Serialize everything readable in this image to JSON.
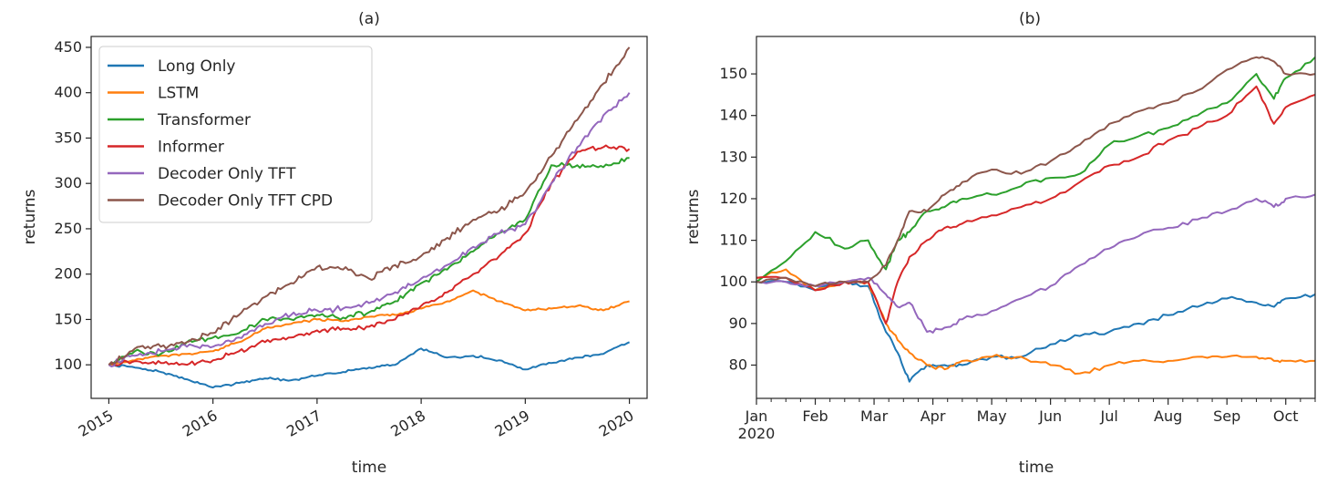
{
  "chart_data": [
    {
      "type": "line",
      "title": "(a)",
      "xlabel": "time",
      "ylabel": "returns",
      "xlim": [
        2014.83,
        2020.17
      ],
      "ylim": [
        63,
        462
      ],
      "x_ticks": [
        2015,
        2016,
        2017,
        2018,
        2019,
        2020
      ],
      "x_tick_labels": [
        "2015",
        "2016",
        "2017",
        "2018",
        "2019",
        "2020"
      ],
      "y_ticks": [
        100,
        150,
        200,
        250,
        300,
        350,
        400,
        450
      ],
      "y_tick_labels": [
        "100",
        "150",
        "200",
        "250",
        "300",
        "350",
        "400",
        "450"
      ],
      "legend_position": "top-left",
      "grid": false,
      "series": [
        {
          "name": "Long Only",
          "color": "#1f77b4",
          "x": [
            2015,
            2015.25,
            2015.5,
            2015.75,
            2016,
            2016.25,
            2016.5,
            2016.75,
            2017,
            2017.25,
            2017.5,
            2017.75,
            2018,
            2018.25,
            2018.5,
            2018.75,
            2019,
            2019.25,
            2019.5,
            2019.75,
            2020
          ],
          "y": [
            100,
            97,
            92,
            84,
            75,
            80,
            85,
            83,
            88,
            92,
            97,
            100,
            118,
            108,
            110,
            105,
            95,
            102,
            108,
            112,
            125
          ]
        },
        {
          "name": "LSTM",
          "color": "#ff7f0e",
          "x": [
            2015,
            2015.25,
            2015.5,
            2015.75,
            2016,
            2016.25,
            2016.5,
            2016.75,
            2017,
            2017.25,
            2017.5,
            2017.75,
            2018,
            2018.25,
            2018.5,
            2018.75,
            2019,
            2019.25,
            2019.5,
            2019.75,
            2020
          ],
          "y": [
            100,
            105,
            110,
            112,
            115,
            125,
            140,
            145,
            150,
            148,
            153,
            155,
            162,
            170,
            182,
            170,
            160,
            162,
            165,
            160,
            170
          ]
        },
        {
          "name": "Transformer",
          "color": "#2ca02c",
          "x": [
            2015,
            2015.25,
            2015.5,
            2015.75,
            2016,
            2016.25,
            2016.5,
            2016.75,
            2017,
            2017.25,
            2017.5,
            2017.75,
            2018,
            2018.25,
            2018.5,
            2018.75,
            2019,
            2019.25,
            2019.5,
            2019.75,
            2020
          ],
          "y": [
            100,
            115,
            112,
            125,
            130,
            135,
            150,
            150,
            155,
            152,
            158,
            170,
            190,
            205,
            225,
            245,
            260,
            320,
            320,
            318,
            328
          ]
        },
        {
          "name": "Informer",
          "color": "#d62728",
          "x": [
            2015,
            2015.25,
            2015.5,
            2015.75,
            2016,
            2016.25,
            2016.5,
            2016.75,
            2017,
            2017.25,
            2017.5,
            2017.75,
            2018,
            2018.25,
            2018.5,
            2018.75,
            2019,
            2019.25,
            2019.5,
            2019.75,
            2020
          ],
          "y": [
            100,
            104,
            102,
            100,
            105,
            115,
            125,
            130,
            138,
            140,
            142,
            150,
            165,
            180,
            200,
            220,
            245,
            300,
            335,
            340,
            338
          ]
        },
        {
          "name": "Decoder Only TFT",
          "color": "#9467bd",
          "x": [
            2015,
            2015.25,
            2015.5,
            2015.75,
            2016,
            2016.25,
            2016.5,
            2016.75,
            2017,
            2017.25,
            2017.5,
            2017.75,
            2018,
            2018.25,
            2018.5,
            2018.75,
            2019,
            2019.25,
            2019.5,
            2019.75,
            2020
          ],
          "y": [
            100,
            110,
            115,
            120,
            120,
            130,
            145,
            155,
            160,
            162,
            168,
            180,
            195,
            210,
            230,
            245,
            255,
            300,
            340,
            375,
            400
          ]
        },
        {
          "name": "Decoder Only TFT CPD",
          "color": "#8c564b",
          "x": [
            2015,
            2015.25,
            2015.5,
            2015.75,
            2016,
            2016.25,
            2016.5,
            2016.75,
            2017,
            2017.25,
            2017.5,
            2017.75,
            2018,
            2018.25,
            2018.5,
            2018.75,
            2019,
            2019.25,
            2019.5,
            2019.75,
            2020
          ],
          "y": [
            100,
            118,
            120,
            125,
            135,
            155,
            175,
            190,
            208,
            205,
            195,
            210,
            220,
            240,
            260,
            270,
            290,
            330,
            370,
            410,
            450
          ]
        }
      ]
    },
    {
      "type": "line",
      "title": "(b)",
      "xlabel": "time",
      "ylabel": "returns",
      "xlim": [
        0,
        9.5
      ],
      "ylim": [
        72,
        159
      ],
      "x_ticks": [
        0,
        1,
        2,
        3,
        4,
        5,
        6,
        7,
        8,
        9
      ],
      "x_tick_labels": [
        "Jan",
        "Feb",
        "Mar",
        "Apr",
        "May",
        "Jun",
        "Jul",
        "Aug",
        "Sep",
        "Oct"
      ],
      "x_year_label": "2020",
      "y_ticks": [
        80,
        90,
        100,
        110,
        120,
        130,
        140,
        150
      ],
      "y_tick_labels": [
        "80",
        "90",
        "100",
        "110",
        "120",
        "130",
        "140",
        "150"
      ],
      "grid": false,
      "series": [
        {
          "name": "Long Only",
          "color": "#1f77b4",
          "x": [
            0,
            0.5,
            1,
            1.5,
            1.9,
            2.2,
            2.4,
            2.6,
            2.9,
            3.2,
            3.5,
            4,
            4.5,
            5,
            5.5,
            6,
            6.5,
            7,
            7.5,
            8,
            8.5,
            8.8,
            9,
            9.5
          ],
          "y": [
            100,
            100,
            98,
            100,
            99,
            88,
            83,
            76,
            80,
            80,
            80,
            82,
            82,
            85,
            87,
            88,
            90,
            92,
            94,
            96,
            95,
            94,
            96,
            97
          ]
        },
        {
          "name": "LSTM",
          "color": "#ff7f0e",
          "x": [
            0,
            0.5,
            1,
            1.5,
            1.9,
            2.2,
            2.4,
            2.6,
            2.9,
            3.2,
            3.5,
            4,
            4.5,
            5,
            5.5,
            6,
            6.5,
            7,
            7.5,
            8,
            8.5,
            8.8,
            9,
            9.5
          ],
          "y": [
            101,
            103,
            98,
            100,
            100,
            90,
            86,
            83,
            80,
            79,
            81,
            82,
            82,
            80,
            78,
            80,
            81,
            81,
            82,
            82,
            82,
            81,
            81,
            81
          ]
        },
        {
          "name": "Transformer",
          "color": "#2ca02c",
          "x": [
            0,
            0.5,
            1,
            1.5,
            1.9,
            2.2,
            2.4,
            2.6,
            2.9,
            3.2,
            3.5,
            4,
            4.5,
            5,
            5.5,
            6,
            6.5,
            7,
            7.5,
            8,
            8.5,
            8.8,
            9,
            9.5
          ],
          "y": [
            100,
            105,
            112,
            108,
            110,
            103,
            110,
            112,
            117,
            118,
            120,
            121,
            123,
            125,
            126,
            133,
            135,
            137,
            140,
            143,
            150,
            144,
            149,
            154
          ]
        },
        {
          "name": "Informer",
          "color": "#d62728",
          "x": [
            0,
            0.5,
            1,
            1.5,
            1.9,
            2.2,
            2.4,
            2.6,
            2.9,
            3.2,
            3.5,
            4,
            4.5,
            5,
            5.5,
            6,
            6.5,
            7,
            7.5,
            8,
            8.5,
            8.8,
            9,
            9.5
          ],
          "y": [
            101,
            101,
            98,
            100,
            100,
            90,
            100,
            106,
            110,
            113,
            114,
            116,
            118,
            120,
            124,
            128,
            130,
            134,
            137,
            140,
            147,
            138,
            142,
            145
          ]
        },
        {
          "name": "Decoder Only TFT",
          "color": "#9467bd",
          "x": [
            0,
            0.5,
            1,
            1.5,
            1.9,
            2.2,
            2.4,
            2.6,
            2.9,
            3.2,
            3.5,
            4,
            4.5,
            5,
            5.5,
            6,
            6.5,
            7,
            7.5,
            8,
            8.5,
            8.8,
            9,
            9.5
          ],
          "y": [
            100,
            100,
            99,
            100,
            101,
            97,
            94,
            95,
            88,
            89,
            91,
            93,
            96,
            99,
            104,
            108,
            111,
            113,
            115,
            117,
            120,
            118,
            120,
            121
          ]
        },
        {
          "name": "Decoder Only TFT CPD",
          "color": "#8c564b",
          "x": [
            0,
            0.5,
            1,
            1.5,
            1.9,
            2.2,
            2.4,
            2.6,
            2.9,
            3.2,
            3.5,
            4,
            4.5,
            5,
            5.5,
            6,
            6.5,
            7,
            7.5,
            8,
            8.5,
            8.8,
            9,
            9.5
          ],
          "y": [
            100,
            101,
            99,
            100,
            100,
            104,
            110,
            117,
            117,
            121,
            124,
            127,
            126,
            129,
            133,
            138,
            141,
            143,
            146,
            151,
            154,
            153,
            150,
            150
          ]
        }
      ]
    }
  ]
}
